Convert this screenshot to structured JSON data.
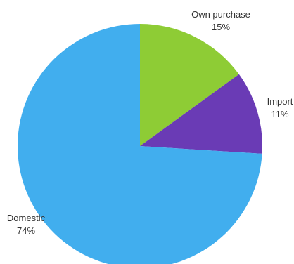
{
  "chart_data": {
    "type": "pie",
    "start_angle_deg": 0,
    "direction": "clockwise",
    "slices": [
      {
        "key": "own_purchase",
        "label": "Own purchase",
        "value": 15,
        "display": "15%",
        "color": "#8ecc35"
      },
      {
        "key": "import",
        "label": "Import",
        "value": 11,
        "display": "11%",
        "color": "#6a3bb5"
      },
      {
        "key": "domestic",
        "label": "Domestic",
        "value": 74,
        "display": "74%",
        "color": "#41aeee"
      }
    ]
  }
}
